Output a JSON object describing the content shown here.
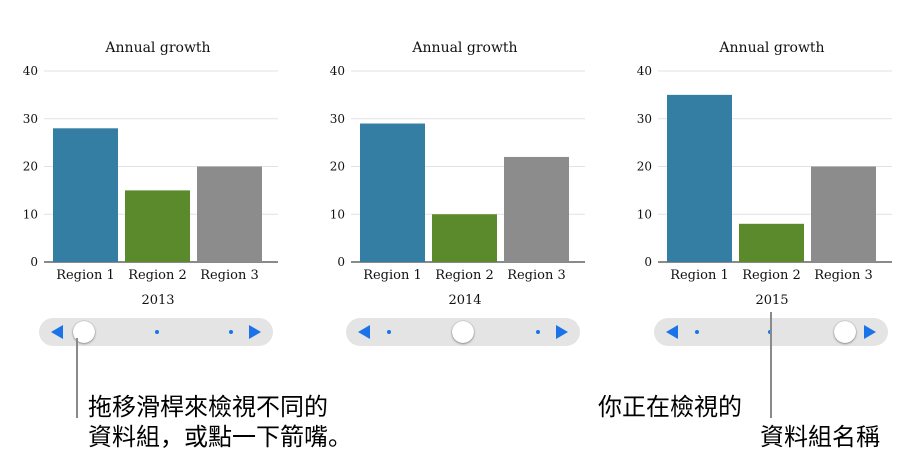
{
  "chart_data": [
    {
      "type": "bar",
      "title": "Annual growth",
      "categories": [
        "Region 1",
        "Region 2",
        "Region 3"
      ],
      "values": [
        28,
        15,
        20
      ],
      "colors": [
        "#357ea3",
        "#5a8a2b",
        "#8c8c8c"
      ],
      "yticks": [
        0,
        10,
        20,
        30,
        40
      ],
      "ylim": [
        0,
        40
      ],
      "xlabel": "2013",
      "grid": true
    },
    {
      "type": "bar",
      "title": "Annual growth",
      "categories": [
        "Region 1",
        "Region 2",
        "Region 3"
      ],
      "values": [
        29,
        10,
        22
      ],
      "colors": [
        "#357ea3",
        "#5a8a2b",
        "#8c8c8c"
      ],
      "yticks": [
        0,
        10,
        20,
        30,
        40
      ],
      "ylim": [
        0,
        40
      ],
      "xlabel": "2014",
      "grid": true
    },
    {
      "type": "bar",
      "title": "Annual growth",
      "categories": [
        "Region 1",
        "Region 2",
        "Region 3"
      ],
      "values": [
        35,
        8,
        20
      ],
      "colors": [
        "#357ea3",
        "#5a8a2b",
        "#8c8c8c"
      ],
      "yticks": [
        0,
        10,
        20,
        30,
        40
      ],
      "ylim": [
        0,
        40
      ],
      "xlabel": "2015",
      "grid": true
    }
  ],
  "sliders": [
    {
      "selected_index": 0,
      "count": 3
    },
    {
      "selected_index": 1,
      "count": 3
    },
    {
      "selected_index": 2,
      "count": 3
    }
  ],
  "callouts": {
    "left_line1": "拖移滑桿來檢視不同的",
    "left_line2": "資料組，或點一下箭嘴。",
    "right_line1": "你正在檢視的",
    "right_line2": "資料組名稱"
  },
  "icons": {
    "prev": "left-arrow-icon",
    "next": "right-arrow-icon"
  }
}
